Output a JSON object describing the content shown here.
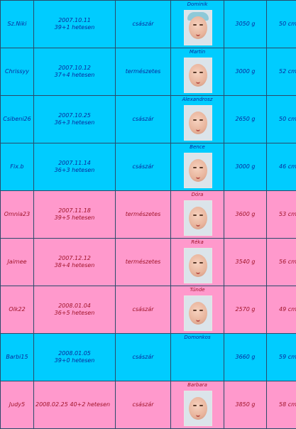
{
  "rows": [
    {
      "user": "Sz.Niki",
      "date": "2007.10.11",
      "gestation": "39+1 hetesen",
      "delivery": "császár",
      "baby": "Dominik",
      "weight": "3050 g",
      "length": "50 cm",
      "gender": "boy",
      "photo": true,
      "hat": true
    },
    {
      "user": "Chrissyy",
      "date": "2007.10.12",
      "gestation": "37+4 hetesen",
      "delivery": "természetes",
      "baby": "Martin",
      "weight": "3000 g",
      "length": "52 cm",
      "gender": "boy",
      "photo": true,
      "hat": false
    },
    {
      "user": "Csibeni26",
      "date": "2007.10.25",
      "gestation": "36+3 hetesen",
      "delivery": "császár",
      "baby": "Alexandrosz",
      "weight": "2650 g",
      "length": "50 cm",
      "gender": "boy",
      "photo": true,
      "hat": false
    },
    {
      "user": "Fix.b",
      "date": "2007.11.14",
      "gestation": "36+3 hetesen",
      "delivery": "császár",
      "baby": "Bence",
      "weight": "3000 g",
      "length": "46 cm",
      "gender": "boy",
      "photo": true,
      "hat": false
    },
    {
      "user": "Omnia23",
      "date": "2007.11.18",
      "gestation": "39+5 hetesen",
      "delivery": "természetes",
      "baby": "Dóra",
      "weight": "3600 g",
      "length": "53 cm",
      "gender": "girl",
      "photo": true,
      "hat": false
    },
    {
      "user": "Jaimee",
      "date": "2007.12.12",
      "gestation": "38+4 hetesen",
      "delivery": "természetes",
      "baby": "Réka",
      "weight": "3540 g",
      "length": "56 cm",
      "gender": "girl",
      "photo": true,
      "hat": false
    },
    {
      "user": "Olk22",
      "date": "2008.01.04",
      "gestation": "36+5 hetesen",
      "delivery": "császár",
      "baby": "Tünde",
      "weight": "2570 g",
      "length": "49 cm",
      "gender": "girl",
      "photo": true,
      "hat": false
    },
    {
      "user": "Barbi15",
      "date": "2008.01.05",
      "gestation": "39+0 hetesen",
      "delivery": "császár",
      "baby": "Domonkos",
      "weight": "3660 g",
      "length": "59 cm",
      "gender": "boy",
      "photo": false,
      "hat": false
    },
    {
      "user": "Judy5",
      "date": "2008.02.25",
      "gestation": "40+2 hetesen",
      "delivery": "császár",
      "baby": "Barbara",
      "weight": "3850 g",
      "length": "58 cm",
      "gender": "girl",
      "photo": true,
      "hat": false,
      "wrap": true
    }
  ],
  "colors": {
    "boy": "#00ccff",
    "girl": "#ff99cc",
    "boy_text": "#0a2a9a",
    "girl_text": "#a0142a"
  }
}
